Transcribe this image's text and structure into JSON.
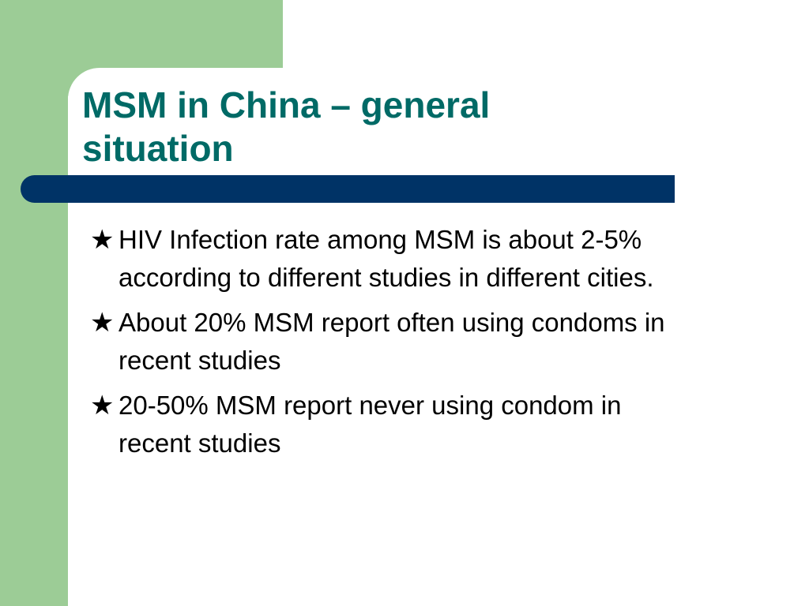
{
  "slide": {
    "title": "MSM in China – general situation",
    "bullet_icon": "star-icon",
    "bullet_glyph": "★",
    "bullets": [
      {
        "text": "HIV Infection rate among MSM is about 2-5% according to different studies in different cities."
      },
      {
        "text": "About 20% MSM report often using condoms in recent studies"
      },
      {
        "text": "20-50% MSM report never using condom in recent studies"
      }
    ]
  },
  "colors": {
    "accent_green": "#9ccc96",
    "title_teal": "#006a66",
    "rule_navy": "#003366",
    "text": "#000000",
    "background": "#ffffff"
  }
}
